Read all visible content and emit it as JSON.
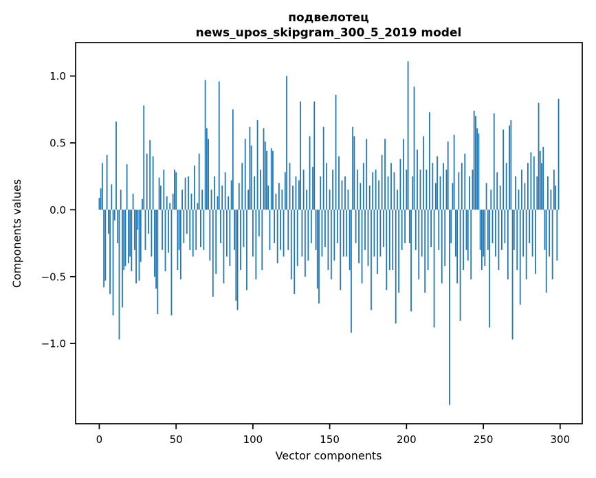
{
  "window": {
    "background": "#ffffff"
  },
  "chart_data": {
    "type": "bar",
    "title": "подвелотец",
    "subtitle": "news_upos_skipgram_300_5_2019 model",
    "xlabel": "Vector components",
    "ylabel": "Components values",
    "x_start": 0,
    "n_bars": 300,
    "bar_color": "#1f77b4",
    "axis_color": "#000000",
    "grid": false,
    "legend": null,
    "xlim": [
      -15.4,
      314.4
    ],
    "ylim": [
      -1.6,
      1.25
    ],
    "xticks": {
      "values": [
        0,
        50,
        100,
        150,
        200,
        250,
        300
      ],
      "labels": [
        "0",
        "50",
        "100",
        "150",
        "200",
        "250",
        "300"
      ]
    },
    "yticks": {
      "values": [
        -1.0,
        -0.5,
        0.0,
        0.5,
        1.0
      ],
      "labels": [
        "−1.0",
        "−0.5",
        "0.0",
        "0.5",
        "1.0"
      ]
    },
    "values": [
      0.09,
      0.16,
      0.35,
      -0.58,
      -0.53,
      0.41,
      -0.18,
      -0.63,
      0.19,
      -0.79,
      -0.08,
      0.66,
      -0.25,
      -0.97,
      0.15,
      -0.73,
      -0.45,
      -0.42,
      0.34,
      -0.4,
      -0.35,
      -0.46,
      0.12,
      -0.3,
      -0.55,
      -0.15,
      -0.53,
      -0.39,
      0.08,
      0.78,
      -0.3,
      0.42,
      -0.18,
      0.52,
      -0.35,
      0.4,
      -0.5,
      -0.59,
      -0.78,
      0.24,
      0.18,
      -0.3,
      0.3,
      -0.46,
      0.1,
      -0.32,
      0.05,
      -0.79,
      0.12,
      0.3,
      0.28,
      -0.45,
      -0.3,
      -0.52,
      0.15,
      -0.25,
      0.24,
      -0.18,
      0.25,
      -0.3,
      0.12,
      -0.35,
      0.33,
      -0.3,
      0.05,
      0.42,
      -0.28,
      0.15,
      -0.3,
      0.97,
      0.61,
      0.53,
      -0.38,
      0.15,
      -0.65,
      0.25,
      -0.48,
      0.1,
      0.96,
      -0.25,
      0.18,
      -0.55,
      0.28,
      -0.35,
      0.1,
      -0.42,
      0.22,
      0.75,
      -0.3,
      -0.68,
      -0.75,
      0.2,
      -0.45,
      0.35,
      -0.28,
      0.53,
      -0.6,
      0.15,
      0.62,
      0.48,
      -0.35,
      0.25,
      -0.52,
      0.67,
      -0.2,
      0.3,
      -0.45,
      0.61,
      0.51,
      0.44,
      0.18,
      -0.3,
      0.46,
      0.44,
      -0.25,
      0.12,
      -0.4,
      0.2,
      -0.3,
      0.15,
      -0.35,
      0.28,
      1.0,
      -0.3,
      0.35,
      -0.52,
      0.18,
      -0.63,
      0.25,
      -0.42,
      0.22,
      0.81,
      -0.35,
      0.3,
      -0.5,
      0.15,
      -0.38,
      0.55,
      -0.25,
      0.32,
      0.81,
      -0.3,
      -0.59,
      -0.7,
      0.25,
      -0.35,
      0.62,
      -0.28,
      0.35,
      -0.45,
      0.15,
      -0.52,
      0.3,
      -0.38,
      0.86,
      -0.25,
      0.4,
      -0.6,
      0.22,
      -0.35,
      0.25,
      -0.35,
      0.15,
      -0.45,
      -0.92,
      0.62,
      0.55,
      -0.25,
      0.3,
      -0.4,
      0.2,
      -0.55,
      0.35,
      -0.3,
      0.53,
      -0.42,
      0.18,
      -0.75,
      0.28,
      -0.35,
      0.3,
      -0.48,
      0.22,
      -0.35,
      0.41,
      -0.28,
      0.53,
      -0.6,
      0.25,
      -0.45,
      0.35,
      -0.45,
      0.28,
      -0.85,
      0.15,
      -0.62,
      0.38,
      -0.3,
      0.53,
      -0.25,
      0.3,
      1.11,
      -0.25,
      -0.76,
      0.25,
      0.92,
      -0.3,
      0.45,
      -0.52,
      0.3,
      -0.35,
      0.55,
      -0.62,
      0.3,
      -0.45,
      0.73,
      -0.28,
      0.35,
      -0.88,
      0.2,
      0.4,
      -0.3,
      0.25,
      -0.55,
      0.35,
      -0.42,
      0.3,
      0.51,
      -1.46,
      -0.25,
      0.2,
      0.56,
      -0.35,
      -0.55,
      0.28,
      -0.83,
      0.35,
      -0.45,
      0.42,
      -0.3,
      -0.38,
      0.25,
      -0.52,
      0.3,
      0.74,
      0.7,
      0.61,
      0.57,
      -0.3,
      -0.45,
      -0.35,
      -0.42,
      0.2,
      -0.3,
      -0.88,
      0.15,
      -0.25,
      0.72,
      -0.35,
      0.28,
      -0.45,
      0.18,
      -0.3,
      0.6,
      -0.25,
      0.35,
      -0.52,
      0.63,
      0.67,
      -0.97,
      -0.3,
      0.25,
      -0.45,
      0.15,
      -0.71,
      0.3,
      -0.35,
      0.2,
      -0.52,
      0.35,
      -0.25,
      0.43,
      -0.35,
      0.4,
      -0.48,
      0.25,
      0.8,
      0.44,
      0.35,
      0.47,
      -0.3,
      -0.62,
      0.25,
      -0.35,
      0.15,
      -0.52,
      0.3,
      0.18,
      -0.38,
      0.83
    ]
  }
}
